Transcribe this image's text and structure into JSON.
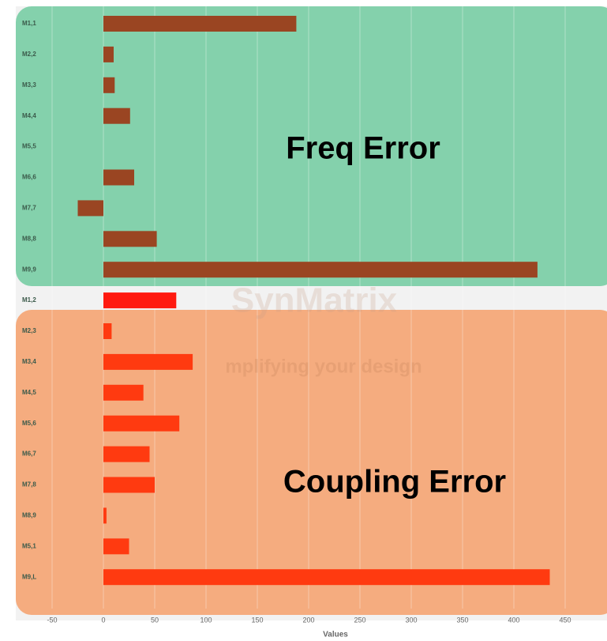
{
  "chart_data": {
    "type": "barh",
    "categories": [
      "M1,1",
      "M2,2",
      "M3,3",
      "M4,4",
      "M5,5",
      "M6,6",
      "M7,7",
      "M8,8",
      "M9,9",
      "M1,2",
      "M2,3",
      "M3,4",
      "M4,5",
      "M5,6",
      "M6,7",
      "M7,8",
      "M8,9",
      "M5,1",
      "M9,L"
    ],
    "values": [
      188,
      10,
      11,
      26,
      0,
      30,
      -25,
      52,
      423,
      71,
      8,
      87,
      39,
      74,
      45,
      50,
      3,
      25,
      435
    ],
    "colors": [
      "#9a4522",
      "#9a4522",
      "#9a4522",
      "#9a4522",
      "#9a4522",
      "#9a4522",
      "#9a4522",
      "#9a4522",
      "#9a4522",
      "#ff1a10",
      "#ff3a10",
      "#ff3a10",
      "#ff3a10",
      "#ff3a10",
      "#ff3a10",
      "#ff3a10",
      "#ff3a10",
      "#ff3a10",
      "#ff3a10"
    ],
    "xlabel": "Values",
    "xlim": [
      -60,
      490
    ],
    "xticks": [
      -50,
      0,
      50,
      100,
      150,
      200,
      250,
      300,
      350,
      400,
      450
    ],
    "grid": true,
    "watermark": [
      "SynMatrix",
      "mplifying your design"
    ],
    "groups": [
      {
        "label": "Freq Error",
        "color": "#7dcfa8"
      },
      {
        "label": "Coupling Error",
        "color": "#f4a878"
      }
    ]
  }
}
